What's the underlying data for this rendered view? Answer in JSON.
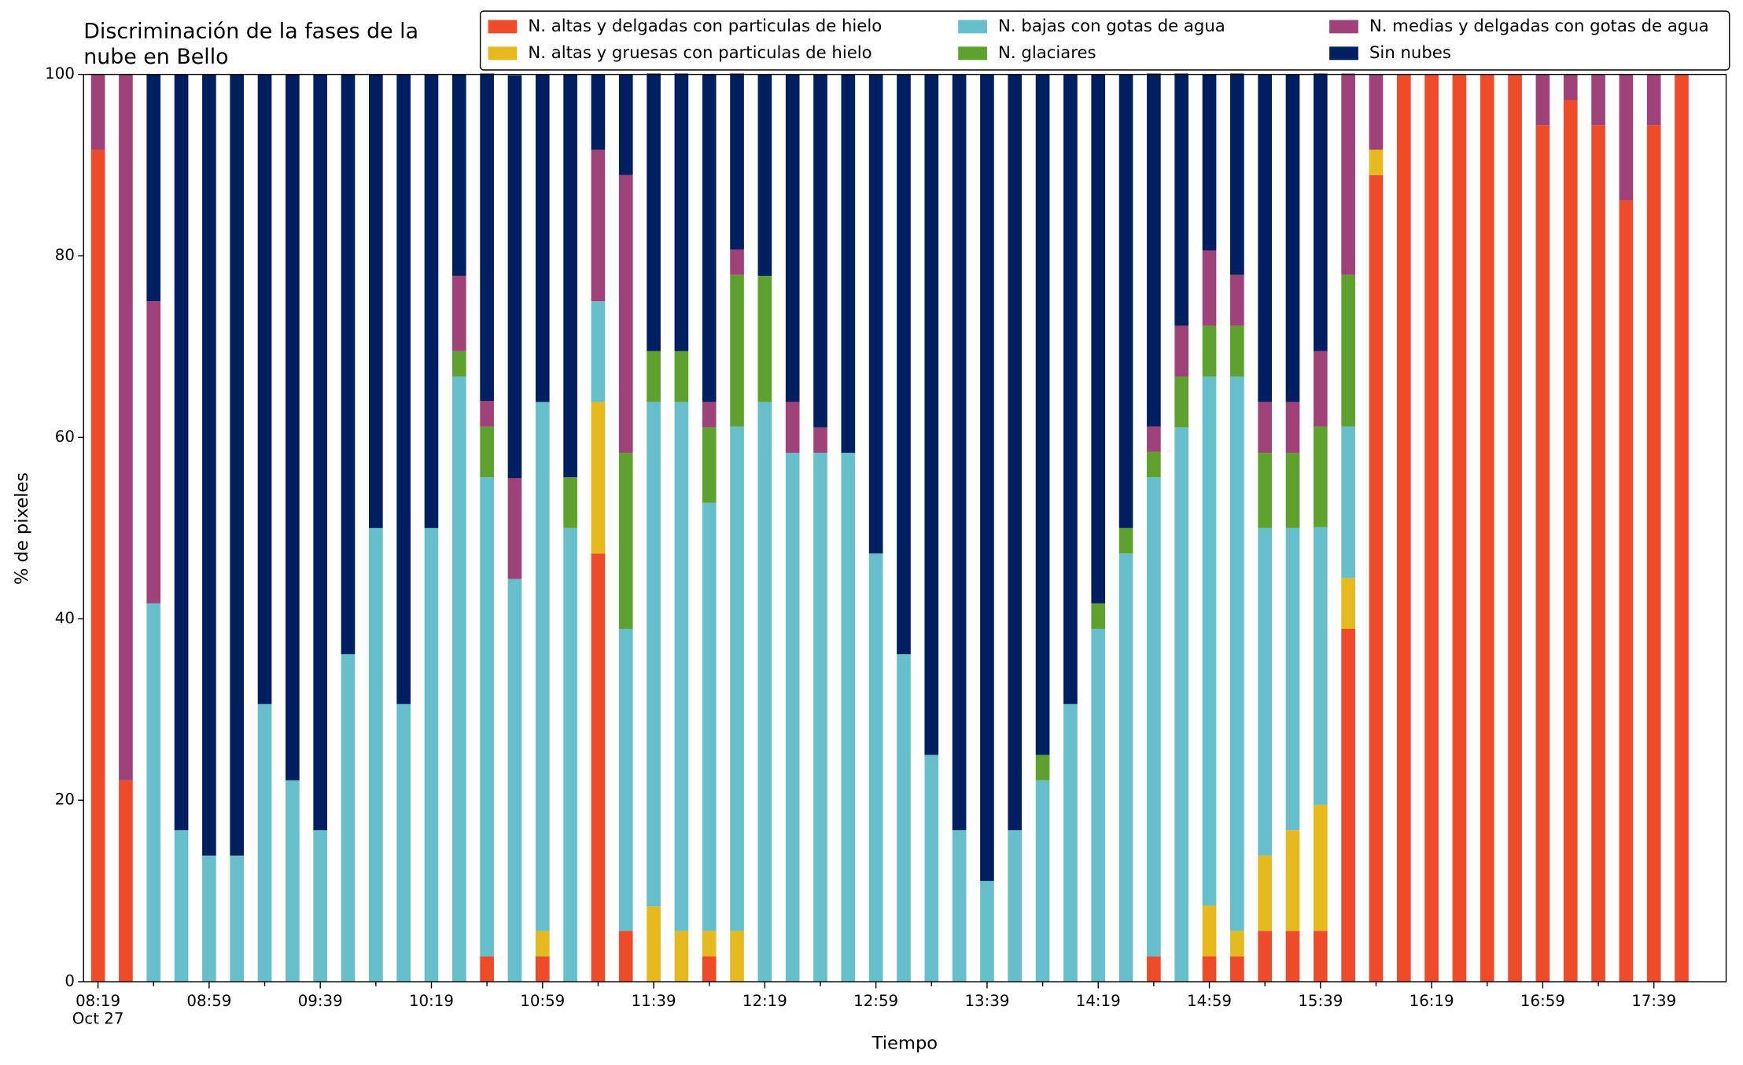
{
  "chart_data": {
    "type": "stacked_bar",
    "title": [
      "Discriminación de la fases de la",
      "nube en Bello"
    ],
    "x_label": "Tiempo",
    "y_label": "% de pixeles",
    "x_date_label": "Oct 27",
    "categories": [
      "08:19",
      null,
      null,
      null,
      "08:59",
      null,
      null,
      null,
      "09:39",
      null,
      null,
      null,
      "10:19",
      null,
      null,
      null,
      "10:59",
      null,
      null,
      null,
      "11:39",
      null,
      null,
      null,
      "12:19",
      null,
      null,
      null,
      "12:59",
      null,
      null,
      null,
      "13:39",
      null,
      null,
      null,
      "14:19",
      null,
      null,
      null,
      "14:59",
      null,
      null,
      null,
      "15:39",
      null,
      null,
      null,
      "16:19",
      null,
      null,
      null,
      "16:59",
      null,
      null,
      null,
      "17:39",
      null
    ],
    "ylim": [
      0,
      100
    ],
    "yticks": [
      0,
      20,
      40,
      60,
      80,
      100
    ],
    "series": [
      {
        "name": "N. altas y delgadas con particulas de hielo",
        "color": "#ee4b2b",
        "values": [
          91.7,
          22.2,
          0,
          0,
          0,
          0,
          0,
          0,
          0,
          0,
          0,
          0,
          0,
          0,
          2.8,
          0,
          2.8,
          0,
          47.2,
          5.6,
          0,
          0,
          2.8,
          0,
          0,
          0,
          0,
          0,
          0,
          0,
          0,
          0,
          0,
          0,
          0,
          0,
          0,
          0,
          2.8,
          0,
          2.8,
          2.8,
          5.6,
          5.6,
          5.6,
          38.9,
          88.9,
          100,
          100,
          100,
          100,
          100,
          94.4,
          97.2,
          94.4,
          86.1,
          94.4,
          100
        ]
      },
      {
        "name": "N. altas y gruesas con particulas de hielo",
        "color": "#e6b91e",
        "values": [
          0,
          0,
          0,
          0,
          0,
          0,
          0,
          0,
          0,
          0,
          0,
          0,
          0,
          0,
          0,
          0,
          2.8,
          0,
          16.7,
          0,
          8.3,
          5.6,
          2.8,
          5.6,
          0,
          0,
          0,
          0,
          0,
          0,
          0,
          0,
          0,
          0,
          0,
          0,
          0,
          0,
          0,
          0,
          5.6,
          2.8,
          8.3,
          11.1,
          13.9,
          5.6,
          2.8,
          0,
          0,
          0,
          0,
          0,
          0,
          0,
          0,
          0,
          0,
          0
        ]
      },
      {
        "name": "N. bajas con gotas de agua",
        "color": "#66bfcb",
        "values": [
          0,
          0,
          41.7,
          16.7,
          13.9,
          13.9,
          30.6,
          22.2,
          16.7,
          36.1,
          50,
          30.6,
          50,
          66.7,
          52.8,
          44.4,
          58.3,
          50,
          11.1,
          33.3,
          55.6,
          58.3,
          47.2,
          55.6,
          63.9,
          58.3,
          58.3,
          58.3,
          47.2,
          36.1,
          25,
          16.7,
          11.1,
          16.7,
          22.2,
          30.6,
          38.9,
          47.2,
          52.8,
          61.1,
          58.3,
          61.1,
          36.1,
          33.3,
          30.6,
          16.7,
          0,
          0,
          0,
          0,
          0,
          0,
          0,
          0,
          0,
          0,
          0,
          0
        ]
      },
      {
        "name": "N. glaciares",
        "color": "#5fa12f",
        "values": [
          0,
          0,
          0,
          0,
          0,
          0,
          0,
          0,
          0,
          0,
          0,
          0,
          0,
          2.8,
          5.6,
          0,
          0,
          5.6,
          0,
          19.4,
          5.6,
          5.6,
          8.3,
          16.7,
          13.9,
          0,
          0,
          0,
          0,
          0,
          0,
          0,
          0,
          0,
          2.8,
          0,
          2.8,
          2.8,
          2.8,
          5.6,
          5.6,
          5.6,
          8.3,
          8.3,
          11.1,
          16.7,
          0,
          0,
          0,
          0,
          0,
          0,
          0,
          0,
          0,
          0,
          0,
          0
        ]
      },
      {
        "name": "N. medias y delgadas con gotas de agua",
        "color": "#a0427a",
        "values": [
          8.3,
          77.8,
          33.3,
          0,
          0,
          0,
          0,
          0,
          0,
          0,
          0,
          0,
          0,
          8.3,
          2.8,
          11.1,
          0,
          0,
          16.7,
          30.6,
          0,
          0,
          2.8,
          2.8,
          0,
          5.6,
          2.8,
          0,
          0,
          0,
          0,
          0,
          0,
          0,
          0,
          0,
          0,
          0,
          2.8,
          5.6,
          8.3,
          5.6,
          5.6,
          5.6,
          8.3,
          22.2,
          8.3,
          0,
          0,
          0,
          0,
          0,
          5.6,
          2.8,
          5.6,
          13.9,
          5.6,
          0
        ]
      },
      {
        "name": "Sin nubes",
        "color": "#001f60",
        "values": [
          0,
          0,
          25,
          83.3,
          86.1,
          86.1,
          69.4,
          77.8,
          83.3,
          63.9,
          50,
          69.4,
          50,
          22.2,
          36.1,
          44.4,
          36.1,
          44.4,
          8.3,
          11.1,
          30.6,
          30.6,
          36.1,
          19.4,
          22.2,
          36.1,
          38.9,
          41.7,
          52.8,
          63.9,
          75,
          83.3,
          88.9,
          83.3,
          75,
          69.4,
          58.3,
          50,
          38.9,
          27.8,
          19.4,
          22.2,
          36.1,
          36.1,
          30.6,
          0,
          0,
          0,
          0,
          0,
          0,
          0,
          0,
          0,
          0,
          0,
          0,
          0
        ]
      }
    ]
  }
}
